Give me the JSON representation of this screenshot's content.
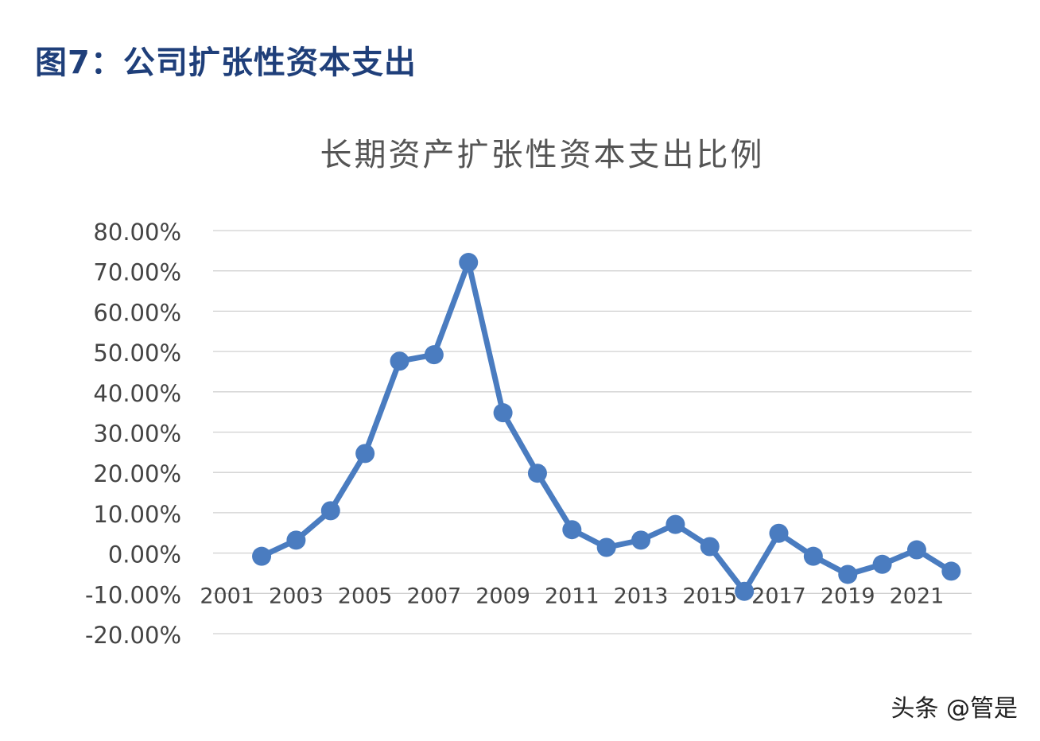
{
  "figure_title": "图7：公司扩张性资本支出",
  "watermark": "头条 @管是",
  "chart_data": {
    "type": "line",
    "title": "长期资产扩张性资本支出比例",
    "xlabel": "",
    "ylabel": "",
    "categories": [
      "2001",
      "2002",
      "2003",
      "2004",
      "2005",
      "2006",
      "2007",
      "2008",
      "2009",
      "2010",
      "2011",
      "2012",
      "2013",
      "2014",
      "2015",
      "2016",
      "2017",
      "2018",
      "2019",
      "2020",
      "2021",
      "2022"
    ],
    "x_tick_labels": [
      "2001",
      "2003",
      "2005",
      "2007",
      "2009",
      "2011",
      "2013",
      "2015",
      "2017",
      "2019",
      "2021"
    ],
    "values": [
      null,
      -0.8,
      3.2,
      10.5,
      24.7,
      47.6,
      49.2,
      72.1,
      34.8,
      19.8,
      5.8,
      1.4,
      3.2,
      7.1,
      1.6,
      -9.5,
      4.9,
      -0.8,
      -5.3,
      -2.8,
      0.8,
      -4.5
    ],
    "y_unit": "%",
    "ylim": [
      -20,
      80
    ],
    "y_ticks": [
      "80.00%",
      "70.00%",
      "60.00%",
      "50.00%",
      "40.00%",
      "30.00%",
      "20.00%",
      "10.00%",
      "0.00%",
      "-10.00%",
      "-20.00%"
    ],
    "grid": true,
    "legend": "none",
    "series_color": "#4a7cc0"
  }
}
